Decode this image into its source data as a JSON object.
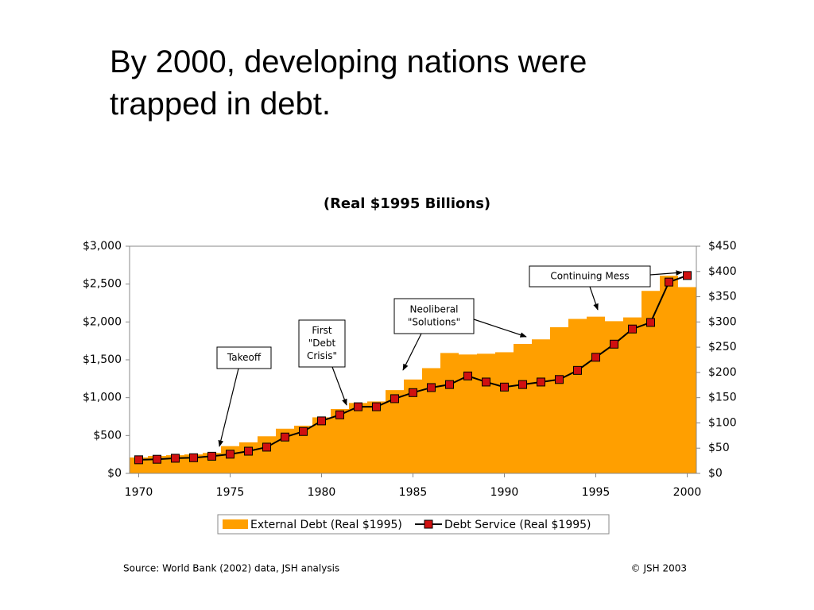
{
  "heading": "By 2000, developing nations were trapped in debt.",
  "chart_data": {
    "type": "combo",
    "title": "(Real $1995 Billions)",
    "x": [
      1970,
      1971,
      1972,
      1973,
      1974,
      1975,
      1976,
      1977,
      1978,
      1979,
      1980,
      1981,
      1982,
      1983,
      1984,
      1985,
      1986,
      1987,
      1988,
      1989,
      1990,
      1991,
      1992,
      1993,
      1994,
      1995,
      1996,
      1997,
      1998,
      1999,
      2000
    ],
    "xlim": [
      1969.5,
      2000.5
    ],
    "xticks": [
      1970,
      1975,
      1980,
      1985,
      1990,
      1995,
      2000
    ],
    "ylim": [
      0,
      3000
    ],
    "yticks": [
      {
        "value": 0,
        "label": "$0"
      },
      {
        "value": 500,
        "label": "$500"
      },
      {
        "value": 1000,
        "label": "$1,000"
      },
      {
        "value": 1500,
        "label": "$1,500"
      },
      {
        "value": 2000,
        "label": "$2,000"
      },
      {
        "value": 2500,
        "label": "$2,500"
      },
      {
        "value": 3000,
        "label": "$3,000"
      }
    ],
    "y2lim": [
      0,
      450
    ],
    "y2ticks": [
      {
        "value": 0,
        "label": "$0"
      },
      {
        "value": 50,
        "label": "$50"
      },
      {
        "value": 100,
        "label": "$100"
      },
      {
        "value": 150,
        "label": "$150"
      },
      {
        "value": 200,
        "label": "$200"
      },
      {
        "value": 250,
        "label": "$250"
      },
      {
        "value": 300,
        "label": "$300"
      },
      {
        "value": 350,
        "label": "$350"
      },
      {
        "value": 400,
        "label": "$400"
      },
      {
        "value": 450,
        "label": "$450"
      }
    ],
    "series": [
      {
        "name": "External Debt (Real $1995)",
        "type": "bar",
        "color": "#ff9f00",
        "values": [
          210,
          230,
          240,
          250,
          270,
          360,
          410,
          490,
          590,
          630,
          740,
          850,
          930,
          950,
          1100,
          1240,
          1390,
          1590,
          1570,
          1580,
          1600,
          1710,
          1770,
          1930,
          2040,
          2070,
          2010,
          2060,
          2410,
          2610,
          2460
        ]
      },
      {
        "name": "Debt Service (Real $1995)",
        "type": "line",
        "axis": "y2",
        "color": "#000000",
        "marker_color": "#d01010",
        "values": [
          27,
          28,
          30,
          31,
          34,
          38,
          44,
          52,
          72,
          83,
          104,
          116,
          132,
          132,
          148,
          160,
          170,
          176,
          193,
          181,
          171,
          176,
          181,
          186,
          204,
          230,
          256,
          286,
          299,
          379,
          392
        ]
      }
    ],
    "annotations": [
      {
        "lines": [
          "Takeoff"
        ]
      },
      {
        "lines": [
          "First",
          "\"Debt",
          "Crisis\""
        ]
      },
      {
        "lines": [
          "Neoliberal",
          "\"Solutions\""
        ]
      },
      {
        "lines": [
          "Continuing Mess"
        ]
      }
    ],
    "source": "Source: World Bank (2002) data, JSH analysis",
    "credit": "© JSH 2003"
  }
}
